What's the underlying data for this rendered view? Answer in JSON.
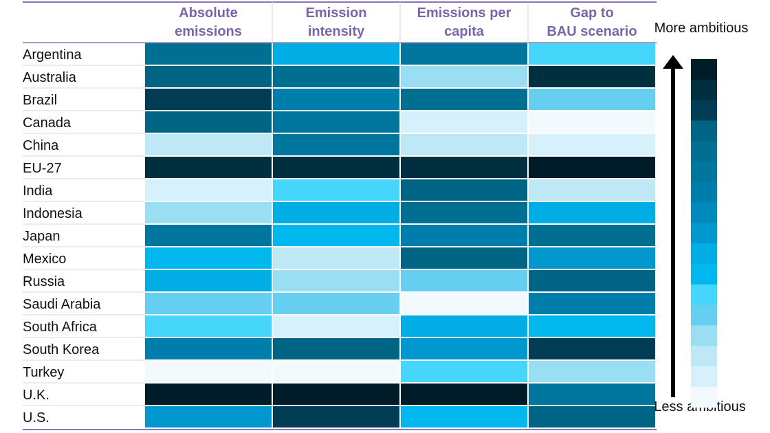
{
  "chart_data": {
    "type": "heatmap",
    "columns": [
      "Absolute emissions",
      "Emission intensity",
      "Emissions per capita",
      "Gap to BAU scenario"
    ],
    "rows": [
      "Argentina",
      "Australia",
      "Brazil",
      "Canada",
      "China",
      "EU-27",
      "India",
      "Indonesia",
      "Japan",
      "Mexico",
      "Russia",
      "Saudi Arabia",
      "South Africa",
      "South Korea",
      "Turkey",
      "U.K.",
      "U.S."
    ],
    "scale_min": 1,
    "scale_max": 16,
    "values": [
      [
        12,
        7,
        11,
        5
      ],
      [
        13,
        12,
        3,
        15
      ],
      [
        14,
        10,
        12,
        4
      ],
      [
        13,
        11,
        1,
        0
      ],
      [
        2,
        11,
        2,
        1
      ],
      [
        15,
        15,
        15,
        16
      ],
      [
        1,
        5,
        13,
        2
      ],
      [
        3,
        7,
        12,
        7
      ],
      [
        11,
        6,
        10,
        12
      ],
      [
        6,
        2,
        13,
        8
      ],
      [
        7,
        3,
        4,
        13
      ],
      [
        4,
        4,
        0,
        10
      ],
      [
        5,
        1,
        7,
        6
      ],
      [
        10,
        13,
        8,
        14
      ],
      [
        0,
        0,
        5,
        3
      ],
      [
        16,
        16,
        16,
        11
      ],
      [
        8,
        14,
        6,
        13
      ]
    ],
    "colorscale": [
      "#f2fafd",
      "#d6f1fb",
      "#bee8f6",
      "#99def3",
      "#66cff0",
      "#46d5fb",
      "#00b8ee",
      "#00aee5",
      "#0098ce",
      "#0089bb",
      "#007eab",
      "#00769f",
      "#006f92",
      "#006584",
      "#003c53",
      "#00303f",
      "#001c28"
    ],
    "legend": {
      "top_label": "More ambitious",
      "bottom_label": "Less ambitious"
    }
  }
}
